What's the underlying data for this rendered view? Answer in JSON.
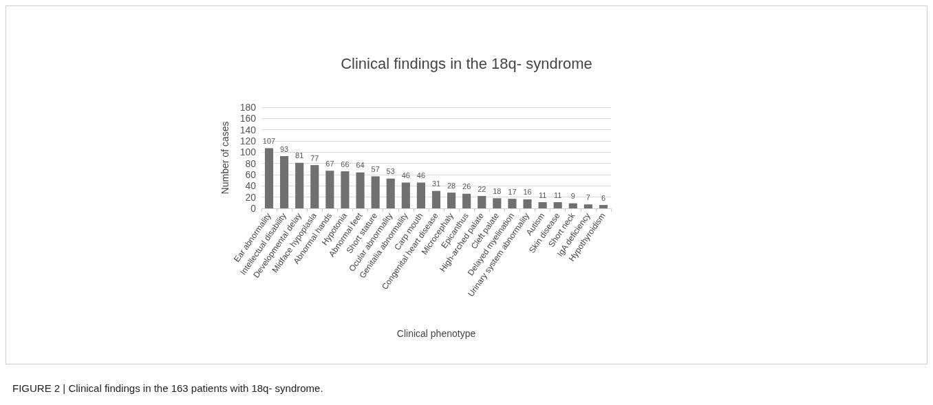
{
  "chart_data": {
    "type": "bar",
    "title": "Clinical findings in the 18q- syndrome",
    "xlabel": "Clinical phenotype",
    "ylabel": "Number of cases",
    "categories": [
      "Ear abnormality",
      "Intellectual disability",
      "Developmental delay",
      "Midface hypoplasia",
      "Abnormal hands",
      "Hypotonia",
      "Abnormal feet",
      "Short stature",
      "Ocular abnormality",
      "Genitalia abnormality",
      "Carp mouth",
      "Congenital heart disease",
      "Microcephaly",
      "Epicanthus",
      "High-arched palate",
      "Cleft palate",
      "Delayed myelination",
      "Urinary system abnormality",
      "Autism",
      "Skin disease",
      "Short neck",
      "IgA deficiency",
      "Hypothyroidism"
    ],
    "values": [
      107,
      93,
      81,
      77,
      67,
      66,
      64,
      57,
      53,
      46,
      46,
      31,
      28,
      26,
      22,
      18,
      17,
      16,
      11,
      11,
      9,
      7,
      6
    ],
    "color": "#707070",
    "ylim": [
      0,
      180
    ],
    "yticks": [
      0,
      20,
      40,
      60,
      80,
      100,
      120,
      140,
      160,
      180
    ],
    "grid": "y",
    "data_labels": true,
    "annotations": [
      "FIGURE 2 | Clinical findings in the 163 patients with 18q- syndrome."
    ]
  }
}
